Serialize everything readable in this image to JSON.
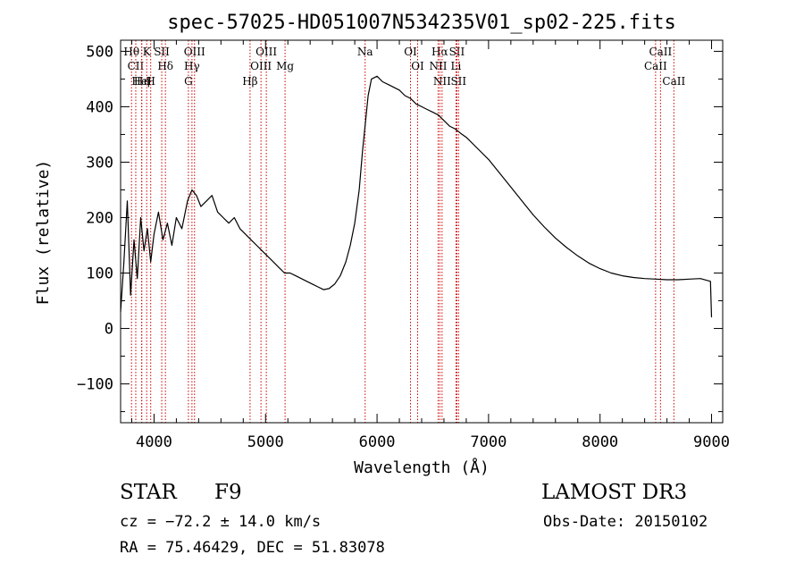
{
  "chart_data": {
    "type": "line",
    "title": "spec-57025-HD051007N534235V01_sp02-225.fits",
    "xlabel": "Wavelength (Å)",
    "ylabel": "Flux (relative)",
    "xlim": [
      3700,
      9100
    ],
    "ylim": [
      -170,
      520
    ],
    "xticks": [
      4000,
      5000,
      6000,
      7000,
      8000,
      9000
    ],
    "xtick_labels": [
      "4000",
      "5000",
      "6000",
      "7000",
      "8000",
      "9000"
    ],
    "yticks": [
      -100,
      0,
      100,
      200,
      300,
      400,
      500
    ],
    "ytick_labels": [
      "−100",
      "0",
      "100",
      "200",
      "300",
      "400",
      "500"
    ],
    "grid": false,
    "series": [
      {
        "name": "spectrum",
        "x": [
          3700,
          3730,
          3760,
          3790,
          3820,
          3850,
          3880,
          3910,
          3940,
          3970,
          4000,
          4040,
          4080,
          4120,
          4160,
          4200,
          4250,
          4300,
          4340,
          4380,
          4420,
          4470,
          4520,
          4570,
          4620,
          4670,
          4720,
          4770,
          4820,
          4870,
          4920,
          4970,
          5020,
          5070,
          5120,
          5170,
          5220,
          5270,
          5320,
          5370,
          5420,
          5470,
          5520,
          5570,
          5620,
          5670,
          5720,
          5760,
          5800,
          5840,
          5870,
          5900,
          5920,
          5950,
          6000,
          6050,
          6100,
          6150,
          6200,
          6250,
          6300,
          6350,
          6400,
          6450,
          6500,
          6550,
          6600,
          6650,
          6700,
          6750,
          6800,
          6900,
          7000,
          7100,
          7200,
          7300,
          7400,
          7500,
          7600,
          7700,
          7800,
          7900,
          8000,
          8100,
          8200,
          8300,
          8400,
          8500,
          8600,
          8700,
          8800,
          8900,
          8990,
          9000
        ],
        "y": [
          30,
          120,
          230,
          60,
          160,
          90,
          200,
          140,
          180,
          120,
          170,
          210,
          160,
          190,
          150,
          200,
          180,
          230,
          250,
          240,
          220,
          230,
          240,
          210,
          200,
          190,
          200,
          180,
          170,
          160,
          150,
          140,
          130,
          120,
          110,
          100,
          100,
          95,
          90,
          85,
          80,
          75,
          70,
          72,
          80,
          95,
          120,
          150,
          190,
          250,
          320,
          380,
          420,
          450,
          455,
          445,
          440,
          435,
          430,
          420,
          415,
          405,
          400,
          395,
          390,
          385,
          375,
          365,
          360,
          352,
          345,
          325,
          305,
          280,
          255,
          230,
          205,
          183,
          163,
          146,
          131,
          118,
          108,
          100,
          95,
          92,
          90,
          89,
          88,
          88,
          89,
          90,
          85,
          20
        ]
      }
    ],
    "line_markers": [
      {
        "name": "Hθ",
        "x": 3798
      },
      {
        "name": "CII",
        "x": 3836
      },
      {
        "name": "K",
        "x": 3934
      },
      {
        "name": "HeI",
        "x": 3889
      },
      {
        "name": "Hη",
        "x": 3890
      },
      {
        "name": "SII",
        "x": 4069
      },
      {
        "name": "H",
        "x": 3970
      },
      {
        "name": "Hδ",
        "x": 4102
      },
      {
        "name": "OIII",
        "x": 4363
      },
      {
        "name": "Hγ",
        "x": 4340
      },
      {
        "name": "G",
        "x": 4308
      },
      {
        "name": "OIII",
        "x": 5007
      },
      {
        "name": "OIII",
        "x": 4959
      },
      {
        "name": "Hβ",
        "x": 4861
      },
      {
        "name": "Mg",
        "x": 5175
      },
      {
        "name": "Na",
        "x": 5893
      },
      {
        "name": "OI",
        "x": 6300
      },
      {
        "name": "OI",
        "x": 6364
      },
      {
        "name": "Hα",
        "x": 6563
      },
      {
        "name": "NII",
        "x": 6548
      },
      {
        "name": "NII",
        "x": 6583
      },
      {
        "name": "SII",
        "x": 6716
      },
      {
        "name": "Li",
        "x": 6708
      },
      {
        "name": "SII",
        "x": 6731
      },
      {
        "name": "CaII",
        "x": 8542
      },
      {
        "name": "CaII",
        "x": 8498
      },
      {
        "name": "CaII",
        "x": 8662
      }
    ]
  },
  "info": {
    "class_label": "STAR",
    "subclass": "F9",
    "survey": "LAMOST DR3",
    "velocity": "cz = −72.2 ± 14.0 km/s",
    "obs_date": "Obs-Date: 20150102",
    "coords": "RA =  75.46429, DEC =  51.83078"
  },
  "colors": {
    "line": "#000000",
    "marker": "#cc0000"
  }
}
